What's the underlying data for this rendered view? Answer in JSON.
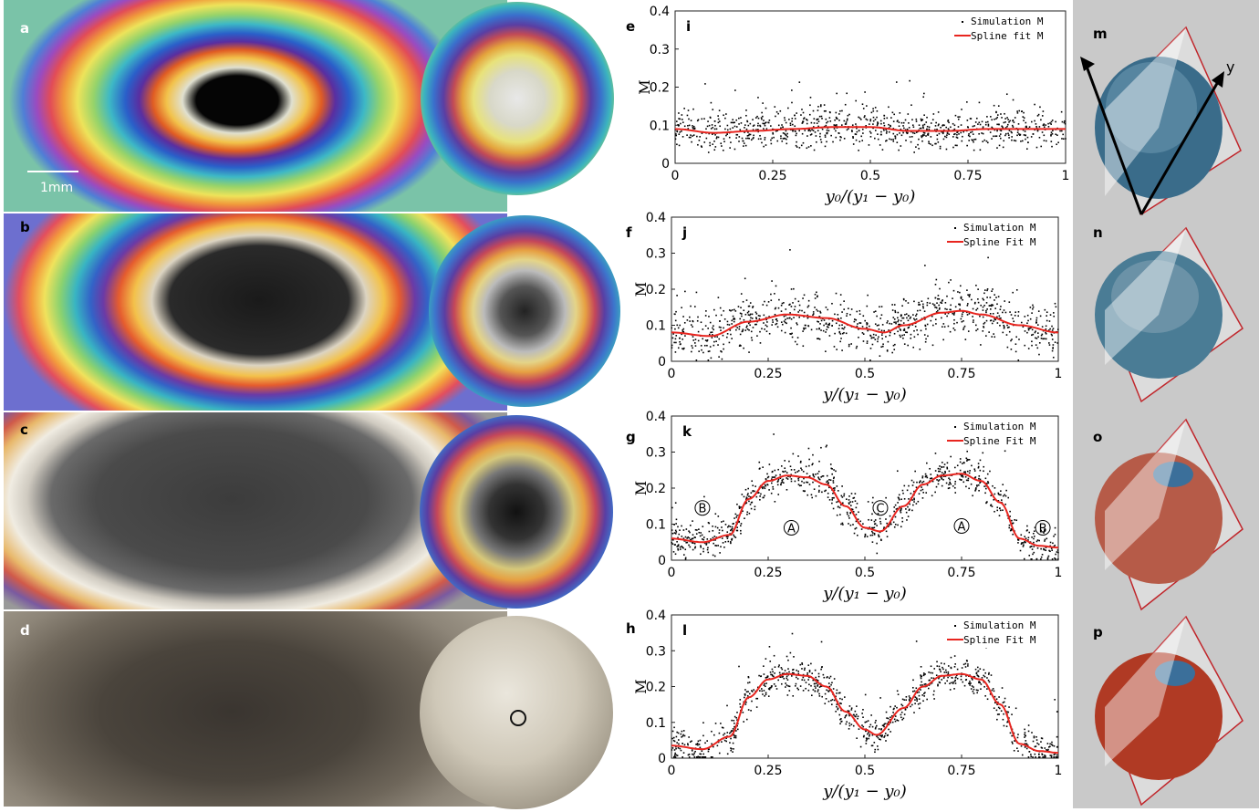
{
  "panel_labels": {
    "a": "a",
    "b": "b",
    "c": "c",
    "d": "d",
    "e": "e",
    "f": "f",
    "g": "g",
    "h": "h",
    "m": "m",
    "n": "n",
    "o": "o",
    "p": "p"
  },
  "scale_bar": {
    "text": "1mm"
  },
  "axis_labels": {
    "m_y": "y"
  },
  "chart_data": [
    {
      "type": "scatter",
      "panel": "i",
      "ylabel": "M",
      "xlabel": "y_0/(y_1 - y_0)",
      "xlabel_display": "y₀/(y₁ − y₀)",
      "xlim": [
        0,
        1
      ],
      "ylim": [
        0,
        0.4
      ],
      "xticks": [
        "0",
        "0.25",
        "0.5",
        "0.75",
        "1"
      ],
      "yticks": [
        "0",
        "0.1",
        "0.2",
        "0.3",
        "0.4"
      ],
      "legend_position": "top-right",
      "series": [
        {
          "name": "Simulation M",
          "kind": "points",
          "color": "#000000",
          "noise": "low",
          "trend_x": [
            0,
            0.1,
            0.2,
            0.3,
            0.4,
            0.5,
            0.6,
            0.7,
            0.8,
            0.9,
            1.0
          ],
          "trend_y": [
            0.09,
            0.08,
            0.085,
            0.09,
            0.095,
            0.095,
            0.085,
            0.085,
            0.09,
            0.09,
            0.09
          ]
        },
        {
          "name": "Spline fit M",
          "kind": "line",
          "color": "#e8251f",
          "x": [
            0,
            0.1,
            0.2,
            0.3,
            0.4,
            0.5,
            0.6,
            0.7,
            0.8,
            0.9,
            1.0
          ],
          "y": [
            0.09,
            0.08,
            0.085,
            0.09,
            0.095,
            0.095,
            0.085,
            0.085,
            0.09,
            0.09,
            0.09
          ]
        }
      ],
      "annotations": []
    },
    {
      "type": "scatter",
      "panel": "j",
      "ylabel": "M",
      "xlabel": "y/(y_1 - y_0)",
      "xlabel_display": "y/(y₁ − y₀)",
      "xlim": [
        0,
        1
      ],
      "ylim": [
        0,
        0.4
      ],
      "xticks": [
        "0",
        "0.25",
        "0.5",
        "0.75",
        "1"
      ],
      "yticks": [
        "0",
        "0.1",
        "0.2",
        "0.3",
        "0.4"
      ],
      "legend_position": "top-right",
      "series": [
        {
          "name": "Simulation M",
          "kind": "points",
          "color": "#000000",
          "noise": "medium",
          "trend_x": [
            0,
            0.1,
            0.2,
            0.3,
            0.4,
            0.5,
            0.55,
            0.6,
            0.7,
            0.75,
            0.8,
            0.9,
            1.0
          ],
          "trend_y": [
            0.08,
            0.07,
            0.11,
            0.13,
            0.12,
            0.09,
            0.08,
            0.1,
            0.135,
            0.14,
            0.13,
            0.1,
            0.08
          ]
        },
        {
          "name": "Spline Fit M",
          "kind": "line",
          "color": "#e8251f",
          "x": [
            0,
            0.1,
            0.2,
            0.3,
            0.4,
            0.5,
            0.55,
            0.6,
            0.7,
            0.75,
            0.8,
            0.9,
            1.0
          ],
          "y": [
            0.08,
            0.07,
            0.11,
            0.13,
            0.12,
            0.09,
            0.08,
            0.1,
            0.135,
            0.14,
            0.13,
            0.1,
            0.08
          ]
        }
      ],
      "annotations": []
    },
    {
      "type": "scatter",
      "panel": "k",
      "ylabel": "M",
      "xlabel": "y/(y_1 - y_0)",
      "xlabel_display": "y/(y₁ − y₀)",
      "xlim": [
        0,
        1
      ],
      "ylim": [
        0,
        0.4
      ],
      "xticks": [
        "0",
        "0.25",
        "0.5",
        "0.75",
        "1"
      ],
      "yticks": [
        "0",
        "0.1",
        "0.2",
        "0.3",
        "0.4"
      ],
      "legend_position": "top-right",
      "series": [
        {
          "name": "Simulation M",
          "kind": "points",
          "color": "#000000",
          "noise": "high",
          "trend_x": [
            0,
            0.08,
            0.15,
            0.2,
            0.25,
            0.3,
            0.35,
            0.4,
            0.45,
            0.5,
            0.54,
            0.6,
            0.65,
            0.7,
            0.75,
            0.8,
            0.85,
            0.9,
            0.95,
            1.0
          ],
          "trend_y": [
            0.06,
            0.05,
            0.07,
            0.17,
            0.22,
            0.235,
            0.23,
            0.21,
            0.15,
            0.09,
            0.08,
            0.15,
            0.21,
            0.235,
            0.24,
            0.22,
            0.16,
            0.06,
            0.04,
            0.035
          ]
        },
        {
          "name": "Spline Fit M",
          "kind": "line",
          "color": "#e8251f",
          "x": [
            0,
            0.08,
            0.15,
            0.2,
            0.25,
            0.3,
            0.35,
            0.4,
            0.45,
            0.5,
            0.54,
            0.6,
            0.65,
            0.7,
            0.75,
            0.8,
            0.85,
            0.9,
            0.95,
            1.0
          ],
          "y": [
            0.06,
            0.05,
            0.07,
            0.17,
            0.22,
            0.235,
            0.23,
            0.21,
            0.15,
            0.09,
            0.08,
            0.15,
            0.21,
            0.235,
            0.24,
            0.22,
            0.16,
            0.06,
            0.04,
            0.035
          ]
        }
      ],
      "annotations": [
        {
          "text": "B",
          "x": 0.08,
          "y": 0.145
        },
        {
          "text": "A",
          "x": 0.31,
          "y": 0.09
        },
        {
          "text": "C",
          "x": 0.54,
          "y": 0.145
        },
        {
          "text": "A",
          "x": 0.75,
          "y": 0.095
        },
        {
          "text": "B",
          "x": 0.96,
          "y": 0.09
        }
      ]
    },
    {
      "type": "scatter",
      "panel": "l",
      "ylabel": "M",
      "xlabel": "y/(y_1 - y_0)",
      "xlabel_display": "y/(y₁ − y₀)",
      "xlim": [
        0,
        1
      ],
      "ylim": [
        0,
        0.4
      ],
      "xticks": [
        "0",
        "0.25",
        "0.5",
        "0.75",
        "1"
      ],
      "yticks": [
        "0",
        "0.1",
        "0.2",
        "0.3",
        "0.4"
      ],
      "legend_position": "top-right",
      "series": [
        {
          "name": "Simulation M",
          "kind": "points",
          "color": "#000000",
          "noise": "high",
          "trend_x": [
            0,
            0.08,
            0.15,
            0.2,
            0.25,
            0.3,
            0.35,
            0.4,
            0.45,
            0.5,
            0.53,
            0.6,
            0.65,
            0.7,
            0.75,
            0.8,
            0.85,
            0.9,
            0.95,
            1.0
          ],
          "trend_y": [
            0.035,
            0.025,
            0.06,
            0.17,
            0.22,
            0.235,
            0.23,
            0.2,
            0.13,
            0.08,
            0.065,
            0.14,
            0.2,
            0.23,
            0.235,
            0.22,
            0.15,
            0.04,
            0.02,
            0.015
          ]
        },
        {
          "name": "Spline Fit M",
          "kind": "line",
          "color": "#e8251f",
          "x": [
            0,
            0.08,
            0.15,
            0.2,
            0.25,
            0.3,
            0.35,
            0.4,
            0.45,
            0.5,
            0.53,
            0.6,
            0.65,
            0.7,
            0.75,
            0.8,
            0.85,
            0.9,
            0.95,
            1.0
          ],
          "y": [
            0.035,
            0.025,
            0.06,
            0.17,
            0.22,
            0.235,
            0.23,
            0.2,
            0.13,
            0.08,
            0.065,
            0.14,
            0.2,
            0.23,
            0.235,
            0.22,
            0.15,
            0.04,
            0.02,
            0.015
          ]
        }
      ],
      "annotations": []
    }
  ]
}
